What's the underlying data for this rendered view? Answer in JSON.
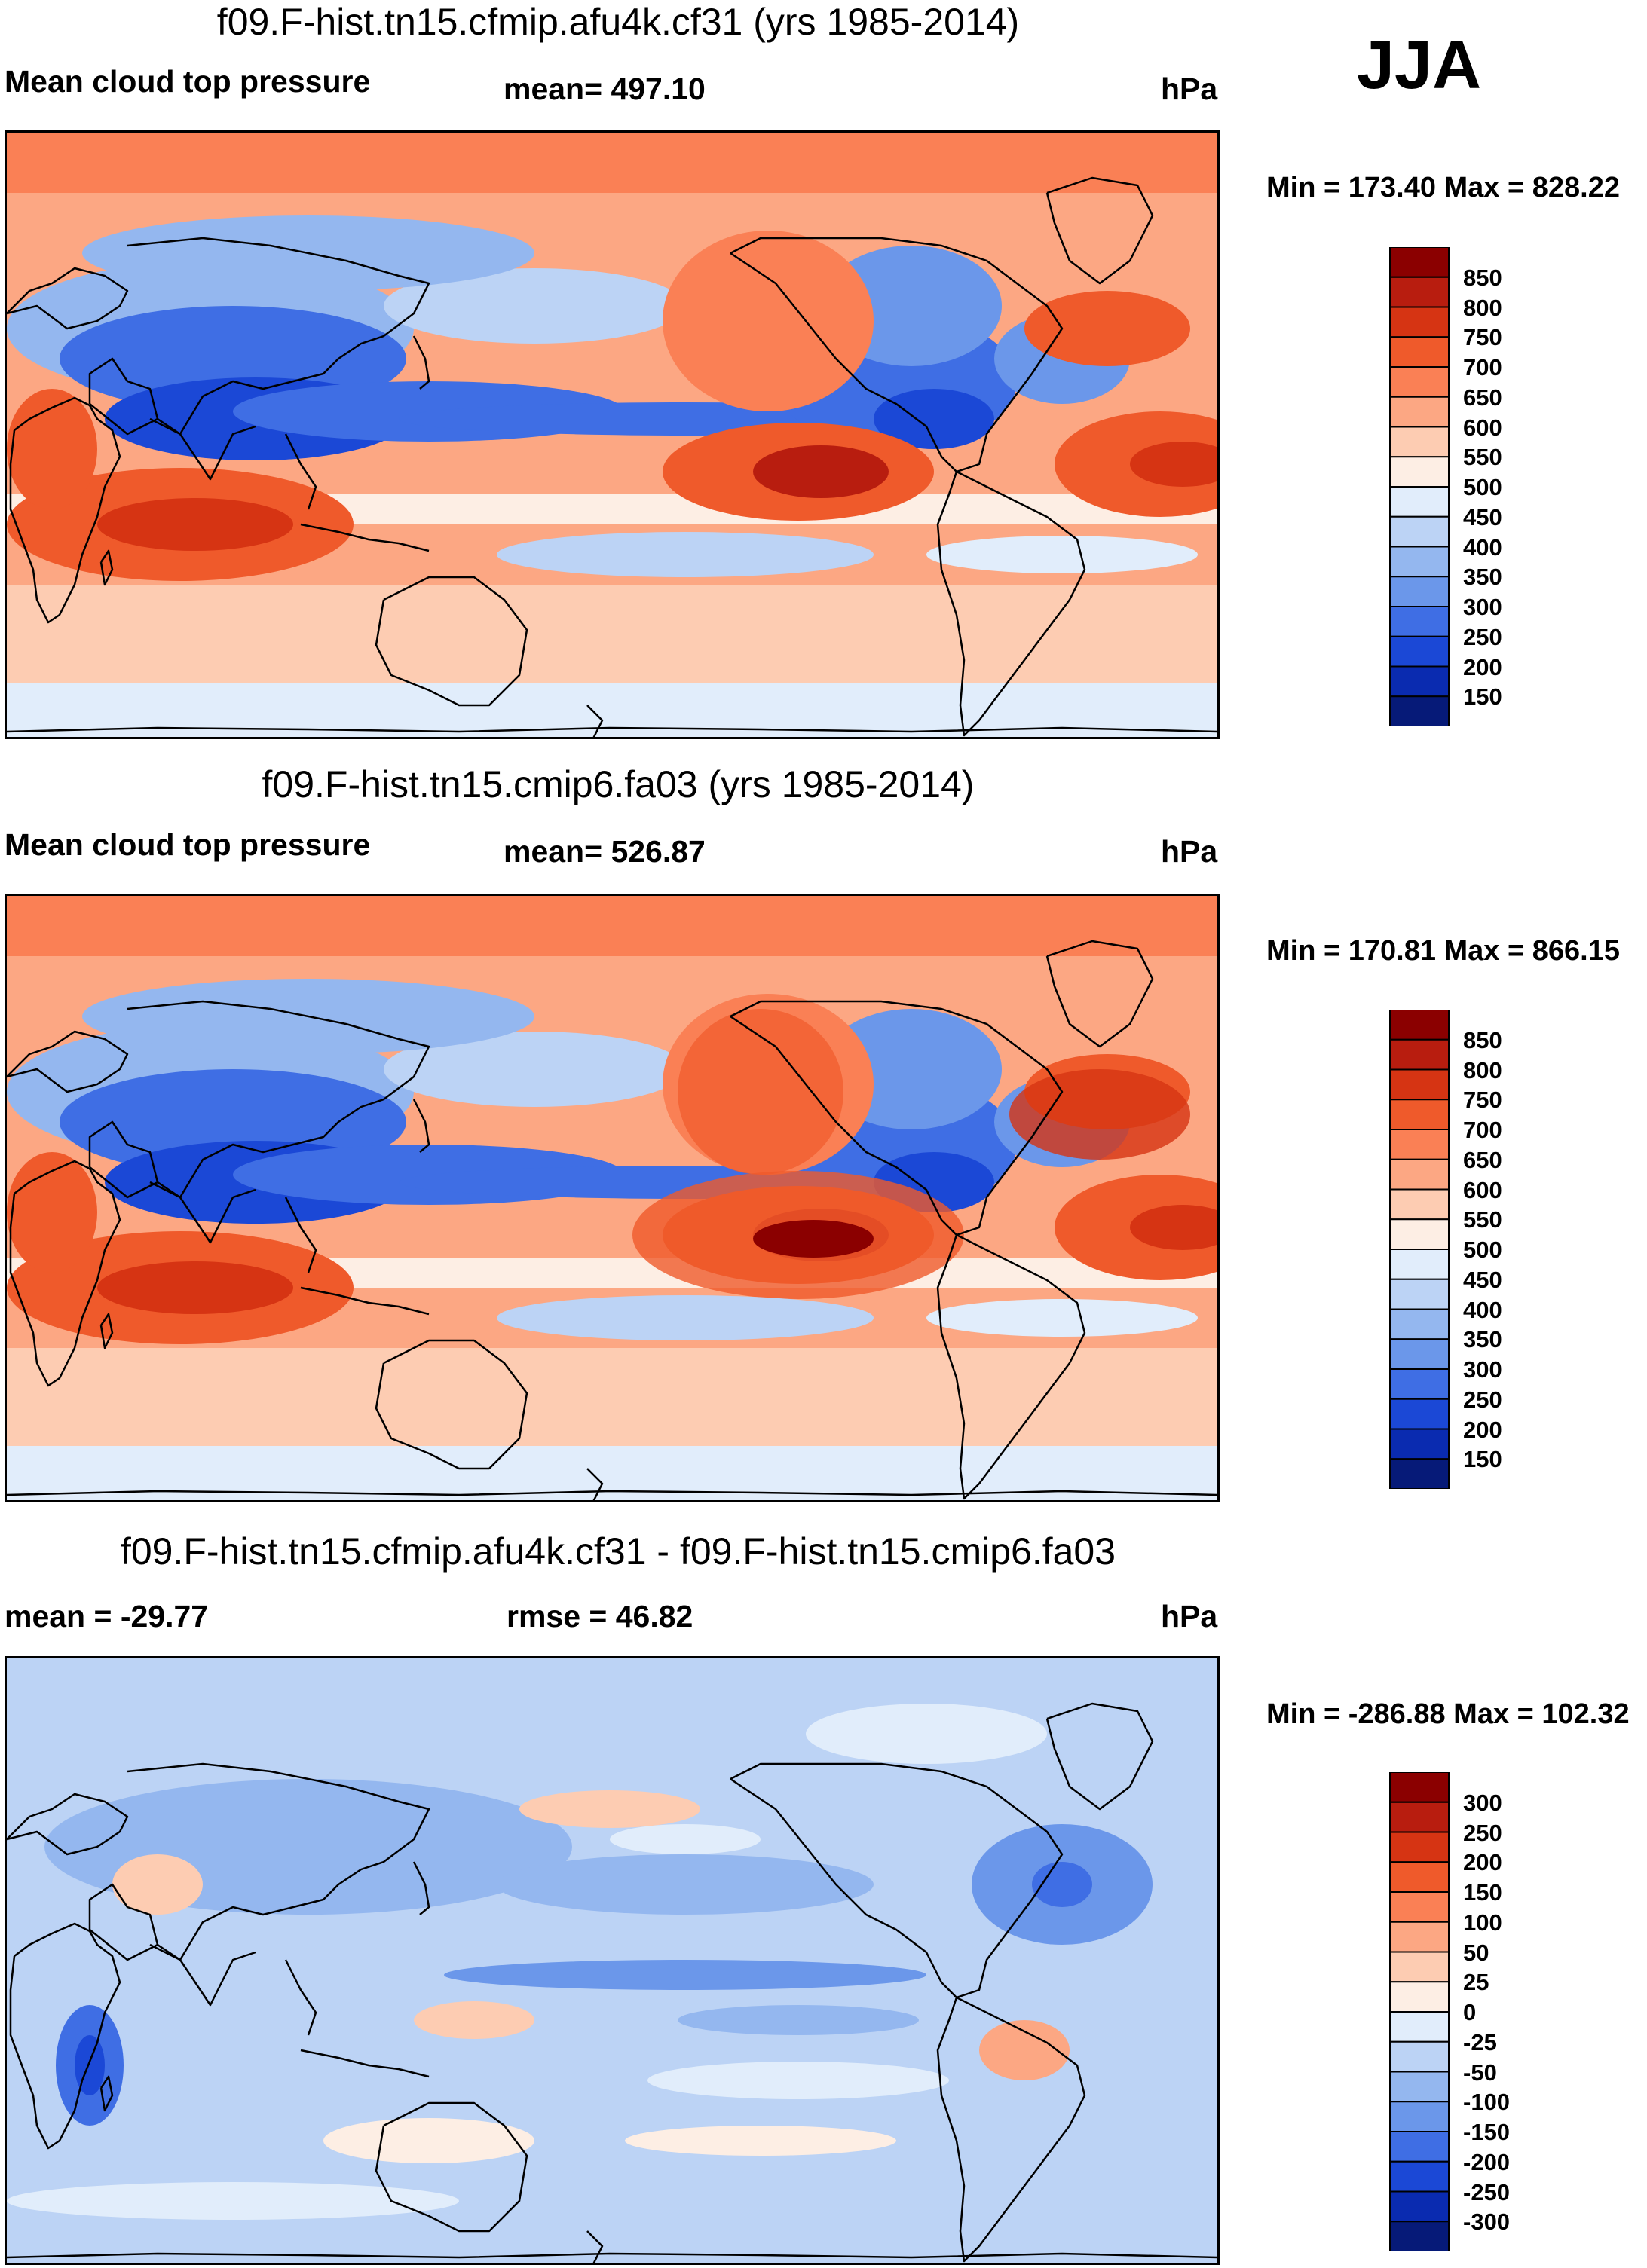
{
  "figure": {
    "season": "JJA",
    "units": "hPa"
  },
  "chart_data": [
    {
      "type": "heatmap",
      "title": "f09.F-hist.tn15.cfmip.afu4k.cf31 (yrs 1985-2014)",
      "variable": "Mean cloud top pressure",
      "mean_text": "mean= 497.10",
      "units": "hPa",
      "minmax_text": "Min = 173.40 Max = 828.22",
      "min": 173.4,
      "max": 828.22,
      "mean": 497.1,
      "colorbar_levels": [
        "850",
        "800",
        "750",
        "700",
        "650",
        "600",
        "550",
        "500",
        "450",
        "400",
        "350",
        "300",
        "250",
        "200",
        "150"
      ],
      "colorbar_colors": [
        "#8b0000",
        "#b81d0f",
        "#d63413",
        "#ef5a2b",
        "#fa8055",
        "#fca783",
        "#fdccb2",
        "#fdeee4",
        "#e1edfb",
        "#bcd3f5",
        "#94b7ef",
        "#6b97ea",
        "#3f6ee4",
        "#1b48d6",
        "#0a2bb0",
        "#061a78"
      ]
    },
    {
      "type": "heatmap",
      "title": "f09.F-hist.tn15.cmip6.fa03 (yrs 1985-2014)",
      "variable": "Mean cloud top pressure",
      "mean_text": "mean= 526.87",
      "units": "hPa",
      "minmax_text": "Min = 170.81 Max = 866.15",
      "min": 170.81,
      "max": 866.15,
      "mean": 526.87,
      "colorbar_levels": [
        "850",
        "800",
        "750",
        "700",
        "650",
        "600",
        "550",
        "500",
        "450",
        "400",
        "350",
        "300",
        "250",
        "200",
        "150"
      ],
      "colorbar_colors": [
        "#8b0000",
        "#b81d0f",
        "#d63413",
        "#ef5a2b",
        "#fa8055",
        "#fca783",
        "#fdccb2",
        "#fdeee4",
        "#e1edfb",
        "#bcd3f5",
        "#94b7ef",
        "#6b97ea",
        "#3f6ee4",
        "#1b48d6",
        "#0a2bb0",
        "#061a78"
      ]
    },
    {
      "type": "heatmap",
      "title": "f09.F-hist.tn15.cfmip.afu4k.cf31 - f09.F-hist.tn15.cmip6.fa03",
      "variable": "",
      "mean_text": "mean = -29.77",
      "rmse_text": "rmse =  46.82",
      "units": "hPa",
      "minmax_text": "Min = -286.88 Max = 102.32",
      "min": -286.88,
      "max": 102.32,
      "mean": -29.77,
      "rmse": 46.82,
      "colorbar_levels": [
        "300",
        "250",
        "200",
        "150",
        "100",
        "50",
        "25",
        "0",
        "-25",
        "-50",
        "-100",
        "-150",
        "-200",
        "-250",
        "-300"
      ],
      "colorbar_colors": [
        "#8b0000",
        "#b81d0f",
        "#d63413",
        "#ef5a2b",
        "#fa8055",
        "#fca783",
        "#fdccb2",
        "#fdeee4",
        "#e1edfb",
        "#bcd3f5",
        "#94b7ef",
        "#6b97ea",
        "#3f6ee4",
        "#1b48d6",
        "#0a2bb0",
        "#061a78"
      ]
    }
  ]
}
